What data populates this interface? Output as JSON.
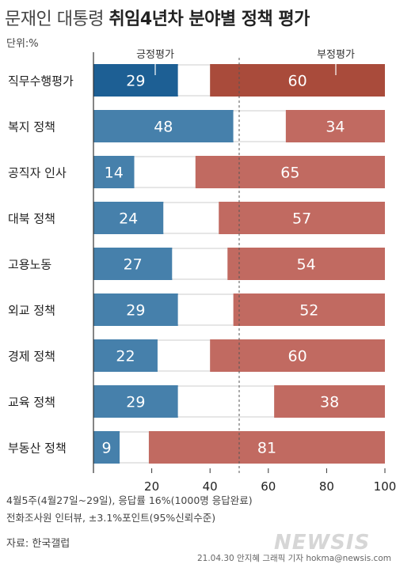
{
  "header": {
    "title_light": "문재인 대통령",
    "title_bold": "취임4년차 분야별 정책 평가",
    "unit": "단위:%"
  },
  "chart_data": {
    "type": "bar",
    "stacked": true,
    "orientation": "horizontal",
    "categories": [
      "직무수행평가",
      "복지 정책",
      "공직자 인사",
      "대북 정책",
      "고용노동",
      "외교 정책",
      "경제 정책",
      "교육 정책",
      "부동산 정책"
    ],
    "series": [
      {
        "name": "긍정평가",
        "values": [
          29,
          48,
          14,
          24,
          27,
          29,
          22,
          29,
          9
        ],
        "anchor": "left"
      },
      {
        "name": "부정평가",
        "values": [
          60,
          34,
          65,
          57,
          54,
          52,
          60,
          38,
          81
        ],
        "anchor": "right"
      }
    ],
    "xlim": [
      0,
      100
    ],
    "xticks": [
      20,
      40,
      60,
      80,
      100
    ],
    "reference_line": 50,
    "colors": {
      "positive_first": "#1d5f94",
      "positive": "#4680ab",
      "negative_first": "#a94b3b",
      "negative": "#c16a61",
      "band": "#e6e6e6"
    }
  },
  "footer": {
    "note1": "4월5주(4월27일~29일), 응답률 16%(1000명 응답완료)",
    "note2": "전화조사원 인터뷰, ±3.1%포인트(95%신뢰수준)",
    "source": "자료: 한국갤럽",
    "credit": "21.04.30 안지혜 그래픽 기자 hokma@newsis.com",
    "logo": "NEWSIS"
  }
}
